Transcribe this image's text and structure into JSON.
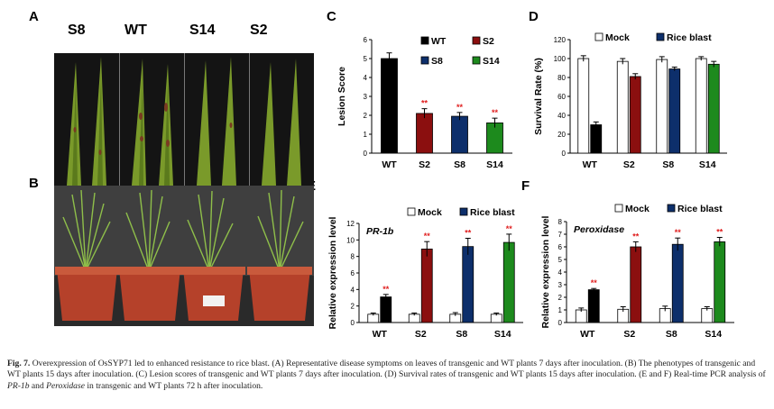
{
  "panel_labels": {
    "A": "A",
    "B": "B",
    "C": "C",
    "D": "D",
    "E": "E",
    "F": "F"
  },
  "photo_a_labels": [
    "S8",
    "WT",
    "S14",
    "S2"
  ],
  "colors": {
    "WT": "#000000",
    "S2": "#8b0f0f",
    "S8": "#0d2f6b",
    "S14": "#1d8a1d",
    "Mock": "#ffffff",
    "star": "#e02020"
  },
  "chart_data": [
    {
      "id": "C",
      "type": "bar",
      "title": "",
      "ylabel": "Lesion Score",
      "xlabel": "",
      "categories": [
        "WT",
        "S2",
        "S8",
        "S14"
      ],
      "values": [
        5.0,
        2.1,
        1.95,
        1.6
      ],
      "errors": [
        0.3,
        0.25,
        0.2,
        0.25
      ],
      "significance": [
        "",
        "**",
        "**",
        "**"
      ],
      "ylim": [
        0,
        6
      ],
      "yticks": [
        0,
        1,
        2,
        3,
        4,
        5,
        6
      ],
      "legend": [
        "WT",
        "S2",
        "S8",
        "S14"
      ]
    },
    {
      "id": "D",
      "type": "bar",
      "ylabel": "Survival Rate (%)",
      "categories": [
        "WT",
        "S2",
        "S8",
        "S14"
      ],
      "series": [
        {
          "name": "Mock",
          "values": [
            100,
            97,
            99,
            100
          ],
          "errors": [
            3,
            3,
            3,
            2
          ]
        },
        {
          "name": "Rice blast",
          "values": [
            30,
            81,
            89,
            94
          ],
          "errors": [
            3,
            3,
            2,
            3
          ]
        }
      ],
      "ylim": [
        0,
        120
      ],
      "yticks": [
        0,
        20,
        40,
        60,
        80,
        100,
        120
      ],
      "legend": [
        "Mock",
        "Rice blast"
      ]
    },
    {
      "id": "E",
      "type": "bar",
      "annotation": "PR-1b",
      "ylabel": "Relative expression level",
      "categories": [
        "WT",
        "S2",
        "S8",
        "S14"
      ],
      "series": [
        {
          "name": "Mock",
          "values": [
            1.0,
            1.0,
            1.0,
            1.0
          ],
          "errors": [
            0.15,
            0.15,
            0.2,
            0.15
          ]
        },
        {
          "name": "Rice blast",
          "values": [
            3.1,
            8.9,
            9.2,
            9.7
          ],
          "errors": [
            0.3,
            0.9,
            1.0,
            1.0
          ]
        }
      ],
      "significance": [
        "**",
        "**",
        "**",
        "**"
      ],
      "ylim": [
        0,
        12
      ],
      "yticks": [
        0,
        2,
        4,
        6,
        8,
        10,
        12
      ],
      "legend": [
        "Mock",
        "Rice blast"
      ]
    },
    {
      "id": "F",
      "type": "bar",
      "annotation": "Peroxidase",
      "ylabel": "Relative expression level",
      "categories": [
        "WT",
        "S2",
        "S8",
        "S14"
      ],
      "series": [
        {
          "name": "Mock",
          "values": [
            1.0,
            1.05,
            1.1,
            1.1
          ],
          "errors": [
            0.15,
            0.2,
            0.2,
            0.15
          ]
        },
        {
          "name": "Rice blast",
          "values": [
            2.6,
            6.0,
            6.2,
            6.4
          ],
          "errors": [
            0.1,
            0.4,
            0.5,
            0.35
          ]
        }
      ],
      "significance": [
        "**",
        "**",
        "**",
        "**"
      ],
      "ylim": [
        0,
        8
      ],
      "yticks": [
        0,
        1,
        2,
        3,
        4,
        5,
        6,
        7,
        8
      ],
      "legend": [
        "Mock",
        "Rice blast"
      ]
    }
  ],
  "caption": {
    "fig": "Fig. 7.",
    "seg1": " Overexpression of OsSYP71 led to enhanced resistance to rice blast. (A) Representative disease symptoms on leaves of transgenic and WT plants 7 days after inoculation. (B) The phenotypes of transgenic and WT plants 15 days after inoculation. (C) Lesion scores of transgenic and WT plants 7 days after inoculation. (D) Survival rates of transgenic and WT plants 15 days after inoculation. (E and F) Real-time PCR analysis of ",
    "gene1": "PR-1b",
    "seg2": " and ",
    "gene2": "Peroxidase",
    "seg3": " in transgenic and WT plants 72 h after inoculation."
  }
}
